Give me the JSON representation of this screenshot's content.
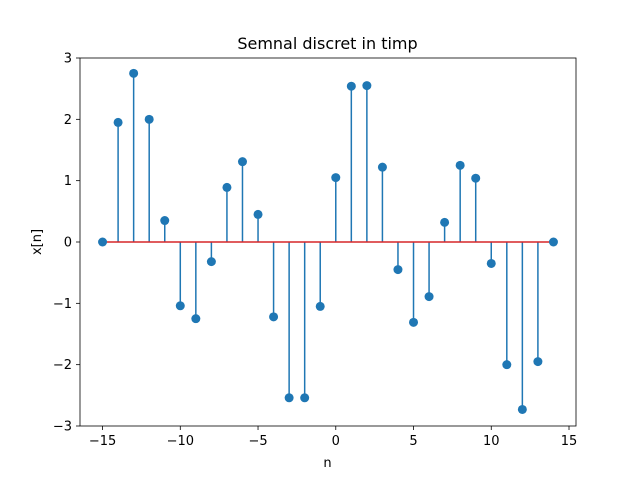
{
  "chart_data": {
    "type": "stem",
    "title": "Semnal discret in timp",
    "xlabel": "n",
    "ylabel": "x[n]",
    "xlim": [
      -16.45,
      15.45
    ],
    "ylim": [
      -3,
      3
    ],
    "xticks": [
      -15,
      -10,
      -5,
      0,
      5,
      10,
      15
    ],
    "xtick_labels": [
      "−15",
      "−10",
      "−5",
      "0",
      "5",
      "10",
      "15"
    ],
    "yticks": [
      -3,
      -2,
      -1,
      0,
      1,
      2,
      3
    ],
    "ytick_labels": [
      "−3",
      "−2",
      "−1",
      "0",
      "1",
      "2",
      "3"
    ],
    "grid": false,
    "colors": {
      "stem": "#1f77b4",
      "baseline": "#d62728"
    },
    "n": [
      -15,
      -14,
      -13,
      -12,
      -11,
      -10,
      -9,
      -8,
      -7,
      -6,
      -5,
      -4,
      -3,
      -2,
      -1,
      0,
      1,
      2,
      3,
      4,
      5,
      6,
      7,
      8,
      9,
      10,
      11,
      12,
      13,
      14
    ],
    "values": [
      0,
      1.95,
      2.75,
      2.0,
      0.35,
      -1.04,
      -1.25,
      -0.32,
      0.89,
      1.31,
      0.45,
      -1.22,
      -2.54,
      -2.54,
      -1.05,
      1.05,
      2.54,
      2.55,
      1.22,
      -0.45,
      -1.31,
      -0.89,
      0.32,
      1.25,
      1.04,
      -0.35,
      -2.0,
      -2.73,
      -1.95,
      0
    ]
  }
}
